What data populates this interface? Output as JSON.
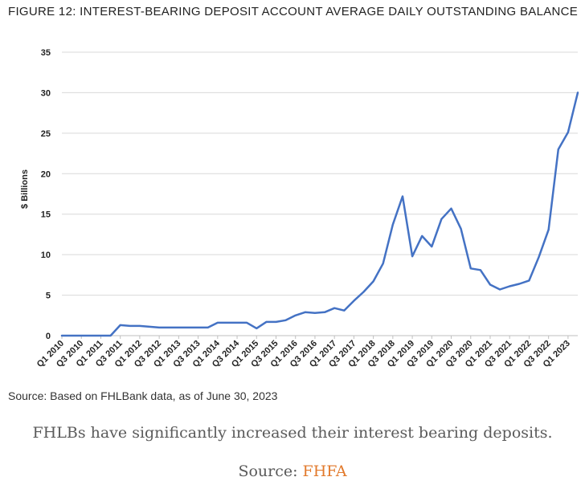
{
  "figure_title": "FIGURE 12: INTEREST-BEARING DEPOSIT ACCOUNT AVERAGE DAILY OUTSTANDING BALANCE",
  "source_note": "Source: Based on FHLBank data, as of June 30, 2023",
  "caption": "FHLBs have significantly increased their interest bearing deposits.",
  "source_line": {
    "prefix": "Source: ",
    "link": "FHFA"
  },
  "colors": {
    "line": "#4472c4",
    "grid": "#d9d9d9",
    "axis": "#bfbfbf",
    "link": "#e27a2c"
  },
  "chart_data": {
    "type": "line",
    "title": "",
    "xlabel": "",
    "ylabel": "$ Billions",
    "ylim": [
      0,
      35
    ],
    "yticks": [
      0,
      5,
      10,
      15,
      20,
      25,
      30,
      35
    ],
    "grid": true,
    "legend": "none",
    "xtick_labels": [
      "Q1 2010",
      "Q3 2010",
      "Q1 2011",
      "Q3 2011",
      "Q1 2012",
      "Q3 2012",
      "Q1 2013",
      "Q3 2013",
      "Q1 2014",
      "Q3 2014",
      "Q1 2015",
      "Q3 2015",
      "Q1 2016",
      "Q3 2016",
      "Q1 2017",
      "Q3 2017",
      "Q1 2018",
      "Q3 2018",
      "Q1 2019",
      "Q3 2019",
      "Q1 2020",
      "Q3 2020",
      "Q1 2021",
      "Q3 2021",
      "Q1 2022",
      "Q3 2022",
      "Q1 2023"
    ],
    "x": [
      "Q1 2010",
      "Q2 2010",
      "Q3 2010",
      "Q4 2010",
      "Q1 2011",
      "Q2 2011",
      "Q3 2011",
      "Q4 2011",
      "Q1 2012",
      "Q2 2012",
      "Q3 2012",
      "Q4 2012",
      "Q1 2013",
      "Q2 2013",
      "Q3 2013",
      "Q4 2013",
      "Q1 2014",
      "Q2 2014",
      "Q3 2014",
      "Q4 2014",
      "Q1 2015",
      "Q2 2015",
      "Q3 2015",
      "Q4 2015",
      "Q1 2016",
      "Q2 2016",
      "Q3 2016",
      "Q4 2016",
      "Q1 2017",
      "Q2 2017",
      "Q3 2017",
      "Q4 2017",
      "Q1 2018",
      "Q2 2018",
      "Q3 2018",
      "Q4 2018",
      "Q1 2019",
      "Q2 2019",
      "Q3 2019",
      "Q4 2019",
      "Q1 2020",
      "Q2 2020",
      "Q3 2020",
      "Q4 2020",
      "Q1 2021",
      "Q2 2021",
      "Q3 2021",
      "Q4 2021",
      "Q1 2022",
      "Q2 2022",
      "Q3 2022",
      "Q4 2022",
      "Q1 2023",
      "Q2 2023"
    ],
    "series": [
      {
        "values": [
          0,
          0,
          0,
          0,
          0,
          0,
          1.3,
          1.2,
          1.2,
          1.1,
          1.0,
          1.0,
          1.0,
          1.0,
          1.0,
          1.0,
          1.6,
          1.6,
          1.6,
          1.6,
          0.9,
          1.7,
          1.7,
          1.9,
          2.5,
          2.9,
          2.8,
          2.9,
          3.4,
          3.1,
          4.3,
          5.4,
          6.7,
          8.9,
          13.7,
          17.2,
          9.8,
          12.3,
          11.0,
          14.4,
          15.7,
          13.2,
          8.3,
          8.1,
          6.3,
          5.7,
          6.1,
          6.4,
          6.8,
          9.7,
          13.1,
          23.0,
          25.1,
          30.0
        ]
      }
    ]
  }
}
